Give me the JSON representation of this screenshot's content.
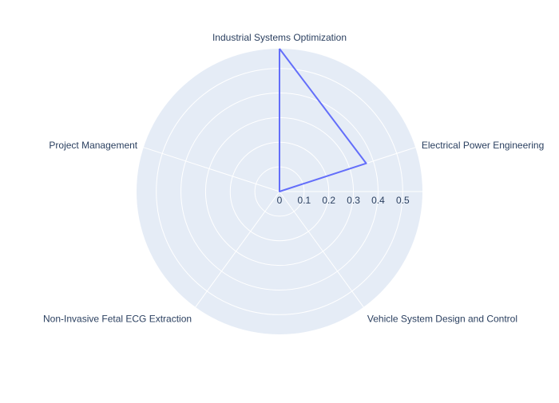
{
  "chart_data": {
    "type": "radar",
    "categories": [
      "Industrial Systems Optimization",
      "Electrical Power Engineering",
      "Vehicle System Design and Control",
      "Non-Invasive Fetal ECG Extraction",
      "Project Management"
    ],
    "series": [
      {
        "values": [
          0.58,
          0.37,
          0,
          0,
          0
        ]
      }
    ],
    "radial_range": [
      0,
      0.58
    ],
    "radial_ticks": [
      0,
      0.1,
      0.2,
      0.3,
      0.4,
      0.5
    ],
    "radial_tick_labels": [
      "0",
      "0.1",
      "0.2",
      "0.3",
      "0.4",
      "0.5"
    ],
    "grid": true,
    "colors": {
      "polar_background": "#E5ECF6",
      "grid": "#ffffff",
      "series_line": "#636EFA",
      "text": "#2A3F5F"
    }
  }
}
